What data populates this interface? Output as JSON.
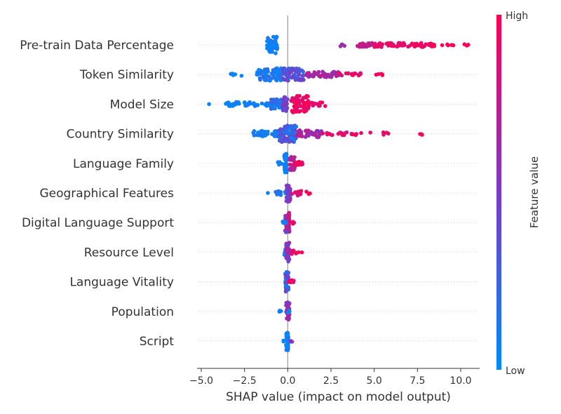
{
  "chart_data": {
    "type": "scatter",
    "subtype": "shap-beeswarm",
    "xlabel": "SHAP value (impact on model output)",
    "xlim": [
      -5.3,
      11.2
    ],
    "xticks": [
      -5.0,
      -2.5,
      0.0,
      2.5,
      5.0,
      7.5,
      10.0
    ],
    "xtick_labels": [
      "−5.0",
      "−2.5",
      "0.0",
      "2.5",
      "5.0",
      "7.5",
      "10.0"
    ],
    "colorbar": {
      "title": "Feature value",
      "high_label": "High",
      "low_label": "Low",
      "low_color": "#008afb",
      "mid_color": "#7b3ac8",
      "high_color": "#ff0052"
    },
    "grid": false,
    "features": [
      {
        "name": "Pre-train Data Percentage",
        "clusters": [
          {
            "lo": -1.2,
            "hi": -0.6,
            "n": 46,
            "fmin": 0.0,
            "fmax": 0.12,
            "spread": 12
          },
          {
            "lo": 3.0,
            "hi": 3.4,
            "n": 4,
            "fmin": 0.55,
            "fmax": 0.7,
            "spread": 2
          },
          {
            "lo": 3.9,
            "hi": 5.0,
            "n": 22,
            "fmin": 0.7,
            "fmax": 0.85,
            "spread": 3
          },
          {
            "lo": 5.0,
            "hi": 8.5,
            "n": 70,
            "fmin": 0.85,
            "fmax": 1.0,
            "spread": 3
          },
          {
            "lo": 8.7,
            "hi": 10.5,
            "n": 8,
            "fmin": 0.95,
            "fmax": 1.0,
            "spread": 1
          }
        ]
      },
      {
        "name": "Token Similarity",
        "clusters": [
          {
            "lo": -3.3,
            "hi": -2.6,
            "n": 5,
            "fmin": 0.0,
            "fmax": 0.1,
            "spread": 2
          },
          {
            "lo": -1.8,
            "hi": -0.3,
            "n": 70,
            "fmin": 0.0,
            "fmax": 0.2,
            "spread": 9
          },
          {
            "lo": -0.3,
            "hi": 1.0,
            "n": 70,
            "fmin": 0.2,
            "fmax": 0.55,
            "spread": 9
          },
          {
            "lo": 1.0,
            "hi": 3.0,
            "n": 45,
            "fmin": 0.5,
            "fmax": 0.8,
            "spread": 4
          },
          {
            "lo": 3.0,
            "hi": 4.3,
            "n": 15,
            "fmin": 0.8,
            "fmax": 1.0,
            "spread": 2
          },
          {
            "lo": 5.0,
            "hi": 5.5,
            "n": 5,
            "fmin": 0.9,
            "fmax": 1.0,
            "spread": 1
          }
        ]
      },
      {
        "name": "Model Size",
        "clusters": [
          {
            "lo": -4.6,
            "hi": -4.5,
            "n": 1,
            "fmin": 0.0,
            "fmax": 0.05,
            "spread": 0
          },
          {
            "lo": -3.6,
            "hi": -1.0,
            "n": 45,
            "fmin": 0.0,
            "fmax": 0.12,
            "spread": 3
          },
          {
            "lo": -1.0,
            "hi": -0.2,
            "n": 40,
            "fmin": 0.05,
            "fmax": 0.3,
            "spread": 7
          },
          {
            "lo": -0.3,
            "hi": 0.0,
            "n": 25,
            "fmin": 0.35,
            "fmax": 0.55,
            "spread": 10
          },
          {
            "lo": 0.2,
            "hi": 1.2,
            "n": 65,
            "fmin": 0.85,
            "fmax": 1.0,
            "spread": 12
          },
          {
            "lo": 1.2,
            "hi": 2.2,
            "n": 12,
            "fmin": 0.85,
            "fmax": 1.0,
            "spread": 3
          }
        ]
      },
      {
        "name": "Country Similarity",
        "clusters": [
          {
            "lo": -2.0,
            "hi": -0.5,
            "n": 30,
            "fmin": 0.0,
            "fmax": 0.12,
            "spread": 4
          },
          {
            "lo": -0.5,
            "hi": 0.5,
            "n": 70,
            "fmin": 0.05,
            "fmax": 0.5,
            "spread": 12
          },
          {
            "lo": 0.5,
            "hi": 2.0,
            "n": 45,
            "fmin": 0.5,
            "fmax": 0.8,
            "spread": 5
          },
          {
            "lo": 2.0,
            "hi": 3.8,
            "n": 22,
            "fmin": 0.8,
            "fmax": 1.0,
            "spread": 2
          },
          {
            "lo": 3.8,
            "hi": 5.9,
            "n": 8,
            "fmin": 0.85,
            "fmax": 1.0,
            "spread": 2
          },
          {
            "lo": 7.6,
            "hi": 7.8,
            "n": 3,
            "fmin": 0.95,
            "fmax": 1.0,
            "spread": 2
          }
        ]
      },
      {
        "name": "Language Family",
        "clusters": [
          {
            "lo": -0.2,
            "hi": -0.05,
            "n": 30,
            "fmin": 0.0,
            "fmax": 0.1,
            "spread": 14
          },
          {
            "lo": -0.8,
            "hi": -0.3,
            "n": 5,
            "fmin": 0.0,
            "fmax": 0.1,
            "spread": 2
          },
          {
            "lo": 0.1,
            "hi": 0.4,
            "n": 25,
            "fmin": 0.6,
            "fmax": 0.9,
            "spread": 10
          },
          {
            "lo": 0.4,
            "hi": 0.9,
            "n": 14,
            "fmin": 0.85,
            "fmax": 1.0,
            "spread": 3
          }
        ]
      },
      {
        "name": "Geographical Features",
        "clusters": [
          {
            "lo": -1.2,
            "hi": -1.1,
            "n": 1,
            "fmin": 0.0,
            "fmax": 0.05,
            "spread": 0
          },
          {
            "lo": -0.7,
            "hi": -0.1,
            "n": 12,
            "fmin": 0.0,
            "fmax": 0.2,
            "spread": 3
          },
          {
            "lo": -0.1,
            "hi": 0.15,
            "n": 50,
            "fmin": 0.35,
            "fmax": 0.65,
            "spread": 13
          },
          {
            "lo": 0.2,
            "hi": 0.8,
            "n": 12,
            "fmin": 0.8,
            "fmax": 1.0,
            "spread": 4
          },
          {
            "lo": 1.0,
            "hi": 1.4,
            "n": 3,
            "fmin": 0.9,
            "fmax": 1.0,
            "spread": 2
          }
        ]
      },
      {
        "name": "Digital Language Support",
        "clusters": [
          {
            "lo": -0.15,
            "hi": 0.1,
            "n": 50,
            "fmin": 0.3,
            "fmax": 0.9,
            "spread": 14
          },
          {
            "lo": -0.3,
            "hi": -0.1,
            "n": 5,
            "fmin": 0.0,
            "fmax": 0.1,
            "spread": 2
          },
          {
            "lo": 0.1,
            "hi": 0.4,
            "n": 6,
            "fmin": 0.8,
            "fmax": 1.0,
            "spread": 2
          }
        ]
      },
      {
        "name": "Resource Level",
        "clusters": [
          {
            "lo": -0.2,
            "hi": 0.0,
            "n": 12,
            "fmin": 0.0,
            "fmax": 0.2,
            "spread": 4
          },
          {
            "lo": -0.1,
            "hi": 0.1,
            "n": 45,
            "fmin": 0.4,
            "fmax": 0.7,
            "spread": 14
          },
          {
            "lo": 0.1,
            "hi": 0.5,
            "n": 8,
            "fmin": 0.8,
            "fmax": 1.0,
            "spread": 3
          },
          {
            "lo": 0.6,
            "hi": 0.9,
            "n": 2,
            "fmin": 0.9,
            "fmax": 1.0,
            "spread": 1
          }
        ]
      },
      {
        "name": "Language Vitality",
        "clusters": [
          {
            "lo": -0.15,
            "hi": 0.05,
            "n": 45,
            "fmin": 0.0,
            "fmax": 0.5,
            "spread": 14
          },
          {
            "lo": 0.05,
            "hi": 0.4,
            "n": 8,
            "fmin": 0.8,
            "fmax": 1.0,
            "spread": 3
          }
        ]
      },
      {
        "name": "Population",
        "clusters": [
          {
            "lo": -0.5,
            "hi": -0.2,
            "n": 4,
            "fmin": 0.0,
            "fmax": 0.1,
            "spread": 2
          },
          {
            "lo": -0.1,
            "hi": 0.1,
            "n": 40,
            "fmin": 0.45,
            "fmax": 0.7,
            "spread": 13
          },
          {
            "lo": 0.0,
            "hi": 0.15,
            "n": 3,
            "fmin": 0.0,
            "fmax": 0.15,
            "spread": 2
          }
        ]
      },
      {
        "name": "Script",
        "clusters": [
          {
            "lo": -0.1,
            "hi": 0.05,
            "n": 40,
            "fmin": 0.0,
            "fmax": 0.15,
            "spread": 14
          },
          {
            "lo": -0.25,
            "hi": -0.1,
            "n": 3,
            "fmin": 0.0,
            "fmax": 0.1,
            "spread": 1
          },
          {
            "lo": 0.1,
            "hi": 0.25,
            "n": 3,
            "fmin": 0.4,
            "fmax": 0.6,
            "spread": 1
          }
        ]
      }
    ]
  }
}
